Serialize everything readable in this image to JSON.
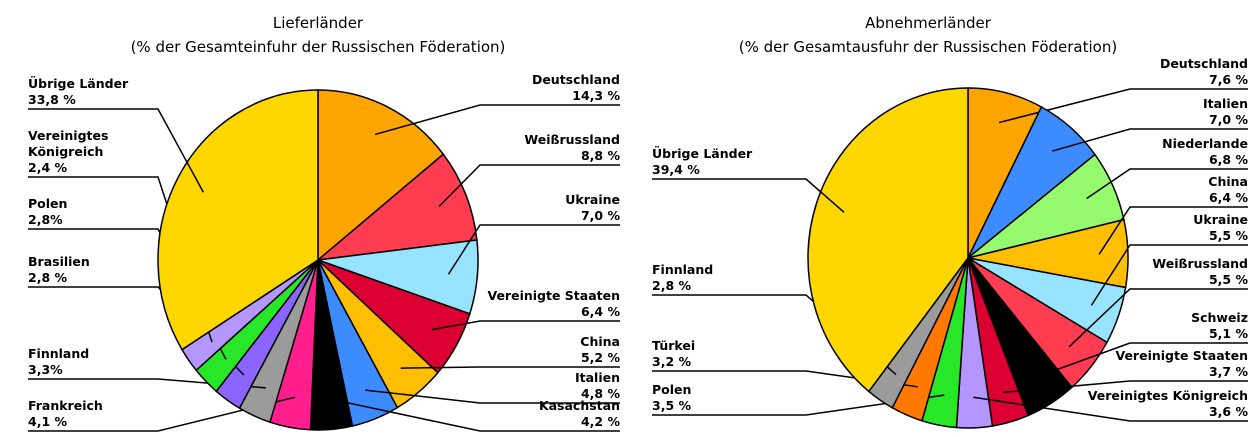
{
  "chart_data": [
    {
      "type": "pie",
      "title": "Lieferländer",
      "subtitle": "(% der Gesamteinfuhr der Russischen Föderation)",
      "categories": [
        "Deutschland",
        "Weißrussland",
        "Ukraine",
        "Vereinigte Staaten",
        "China",
        "Italien",
        "Kasachstan",
        "Frankreich",
        "Finnland",
        "Brasilien",
        "Polen",
        "Vereinigtes Königreich",
        "Übrige Länder"
      ],
      "values": [
        14.3,
        8.8,
        7.0,
        6.4,
        5.2,
        4.8,
        4.2,
        4.1,
        3.3,
        2.8,
        2.8,
        2.4,
        33.8
      ],
      "value_labels": [
        "14,3 %",
        "8,8 %",
        "7,0 %",
        "6,4 %",
        "5,2 %",
        "4,8 %",
        "4,2 %",
        "4,1 %",
        "3,3%",
        "2,8 %",
        "2,8%",
        "2,4 %",
        "33,8 %"
      ],
      "colors": [
        "#ffa500",
        "#ff3c50",
        "#96e4ff",
        "#dc0032",
        "#ffbe00",
        "#3c8cff",
        "#000000",
        "#ff1e8c",
        "#9b9b9b",
        "#8c64ff",
        "#28e628",
        "#b496ff",
        "#ffd700"
      ]
    },
    {
      "type": "pie",
      "title": "Abnehmerländer",
      "subtitle": "(% der Gesamtausfuhr der Russischen Föderation)",
      "categories": [
        "Deutschland",
        "Italien",
        "Niederlande",
        "China",
        "Ukraine",
        "Weißrussland",
        "Schweiz",
        "Vereinigte Staaten",
        "Vereinigtes Königreich",
        "Polen",
        "Türkei",
        "Finnland",
        "Übrige Länder"
      ],
      "values": [
        7.6,
        7.0,
        6.8,
        6.4,
        5.5,
        5.5,
        5.1,
        3.7,
        3.6,
        3.5,
        3.2,
        2.8,
        39.4
      ],
      "value_labels": [
        "7,6 %",
        "7,0 %",
        "6,8 %",
        "6,4 %",
        "5,5 %",
        "5,5 %",
        "5,1 %",
        "3,7 %",
        "3,6 %",
        "3,5 %",
        "3,2 %",
        "2,8 %",
        "39,4 %"
      ],
      "colors": [
        "#ffa500",
        "#3c8cff",
        "#96fa6e",
        "#ffbe00",
        "#96e4ff",
        "#ff3c50",
        "#000000",
        "#dc0032",
        "#b496ff",
        "#28e628",
        "#ff7800",
        "#9b9b9b",
        "#ffd700"
      ]
    }
  ]
}
